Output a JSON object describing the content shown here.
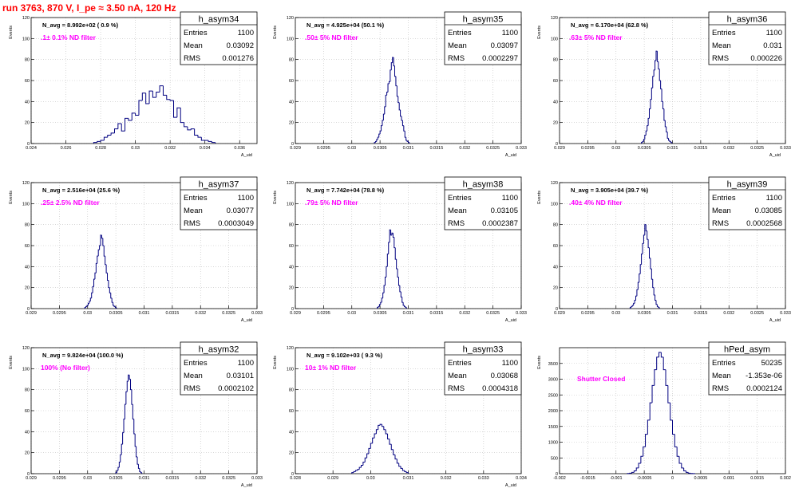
{
  "run_title": "run 3763,   870 V, I_pe ≈ 3.50 nA, 120 Hz",
  "colors": {
    "hist_line": "#000080",
    "grid": "#bfbfbf",
    "annotation": "#ff00ff",
    "title": "#ff0000"
  },
  "chart_data": [
    {
      "type": "histogram",
      "name": "h_asym34",
      "navg": "N_avg = 8.992e+02 ( 0.9 %)",
      "filter": ".1± 0.1% ND filter",
      "stats": {
        "Entries": "1100",
        "Mean": "0.03092",
        "RMS": "0.001276"
      },
      "xlabel": "A_uid",
      "ylabel": "Events",
      "xlim": [
        0.024,
        0.037
      ],
      "ylim": [
        0,
        120
      ],
      "xticks": [
        "0.024",
        "0.026",
        "0.028",
        "0.03",
        "0.032",
        "0.034",
        "0.036"
      ],
      "yticks": [
        "0",
        "20",
        "40",
        "60",
        "80",
        "100",
        "120"
      ],
      "x_start": 0.0276,
      "bin_width": 0.0002,
      "values": [
        1,
        2,
        3,
        6,
        8,
        10,
        14,
        19,
        12,
        24,
        22,
        29,
        27,
        41,
        48,
        38,
        50,
        44,
        49,
        55,
        46,
        42,
        41,
        25,
        34,
        20,
        16,
        13,
        14,
        8,
        6,
        3,
        3,
        2,
        1
      ]
    },
    {
      "type": "histogram",
      "name": "h_asym35",
      "navg": "N_avg = 4.925e+04 (50.1 %)",
      "filter": ".50± 5% ND filter",
      "stats": {
        "Entries": "1100",
        "Mean": "0.03097",
        "RMS": "0.0002297"
      },
      "xlabel": "A_uid",
      "ylabel": "Events",
      "xlim": [
        0.029,
        0.033
      ],
      "ylim": [
        0,
        120
      ],
      "xticks": [
        "0.029",
        "0.0295",
        "0.03",
        "0.0305",
        "0.031",
        "0.0315",
        "0.032",
        "0.0325",
        "0.033"
      ],
      "yticks": [
        "0",
        "20",
        "40",
        "60",
        "80",
        "100",
        "120"
      ],
      "x_start": 0.0304,
      "bin_width": 2e-05,
      "values": [
        1,
        2,
        4,
        6,
        9,
        12,
        17,
        22,
        28,
        35,
        46,
        49,
        57,
        59,
        70,
        77,
        82,
        74,
        64,
        55,
        45,
        39,
        32,
        26,
        22,
        17,
        12,
        6,
        3,
        2,
        1
      ]
    },
    {
      "type": "histogram",
      "name": "h_asym36",
      "navg": "N_avg = 6.170e+04 (62.8 %)",
      "filter": ".63± 5% ND filter",
      "stats": {
        "Entries": "1100",
        "Mean": "0.031",
        "RMS": "0.000226"
      },
      "xlabel": "A_uid",
      "ylabel": "Events",
      "xlim": [
        0.029,
        0.033
      ],
      "ylim": [
        0,
        120
      ],
      "xticks": [
        "0.029",
        "0.0295",
        "0.03",
        "0.0305",
        "0.031",
        "0.0315",
        "0.032",
        "0.0325",
        "0.033"
      ],
      "yticks": [
        "0",
        "20",
        "40",
        "60",
        "80",
        "100",
        "120"
      ],
      "x_start": 0.03045,
      "bin_width": 2e-05,
      "values": [
        1,
        2,
        4,
        8,
        12,
        17,
        24,
        33,
        42,
        53,
        64,
        70,
        79,
        88,
        78,
        71,
        60,
        52,
        40,
        33,
        22,
        16,
        11,
        5,
        3,
        2,
        1
      ]
    },
    {
      "type": "histogram",
      "name": "h_asym37",
      "navg": "N_avg = 2.516e+04 (25.6 %)",
      "filter": ".25± 2.5% ND filter",
      "stats": {
        "Entries": "1100",
        "Mean": "0.03077",
        "RMS": "0.0003049"
      },
      "xlabel": "A_uid",
      "ylabel": "Events",
      "xlim": [
        0.029,
        0.033
      ],
      "ylim": [
        0,
        120
      ],
      "xticks": [
        "0.029",
        "0.0295",
        "0.03",
        "0.0305",
        "0.031",
        "0.0315",
        "0.032",
        "0.0325",
        "0.033"
      ],
      "yticks": [
        "0",
        "20",
        "40",
        "60",
        "80",
        "100",
        "120"
      ],
      "x_start": 0.02995,
      "bin_width": 2e-05,
      "values": [
        1,
        2,
        3,
        5,
        7,
        10,
        15,
        21,
        28,
        34,
        43,
        50,
        56,
        60,
        70,
        67,
        60,
        50,
        42,
        34,
        27,
        20,
        15,
        10,
        6,
        3,
        2,
        1
      ]
    },
    {
      "type": "histogram",
      "name": "h_asym38",
      "navg": "N_avg = 7.742e+04 (78.8 %)",
      "filter": ".79± 5% ND filter",
      "stats": {
        "Entries": "1100",
        "Mean": "0.03105",
        "RMS": "0.0002387"
      },
      "xlabel": "A_uid",
      "ylabel": "Events",
      "xlim": [
        0.029,
        0.033
      ],
      "ylim": [
        0,
        120
      ],
      "xticks": [
        "0.029",
        "0.0295",
        "0.03",
        "0.0305",
        "0.031",
        "0.0315",
        "0.032",
        "0.0325",
        "0.033"
      ],
      "yticks": [
        "0",
        "20",
        "40",
        "60",
        "80",
        "100",
        "120"
      ],
      "x_start": 0.03045,
      "bin_width": 2e-05,
      "values": [
        1,
        2,
        4,
        6,
        10,
        15,
        22,
        30,
        40,
        52,
        63,
        75,
        70,
        72,
        68,
        58,
        47,
        38,
        30,
        22,
        16,
        11,
        6,
        3,
        2,
        1
      ]
    },
    {
      "type": "histogram",
      "name": "h_asym39",
      "navg": "N_avg = 3.905e+04 (39.7 %)",
      "filter": ".40± 4% ND filter",
      "stats": {
        "Entries": "1100",
        "Mean": "0.03085",
        "RMS": "0.0002568"
      },
      "xlabel": "A_uid",
      "ylabel": "Events",
      "xlim": [
        0.029,
        0.033
      ],
      "ylim": [
        0,
        120
      ],
      "xticks": [
        "0.029",
        "0.0295",
        "0.03",
        "0.0305",
        "0.031",
        "0.0315",
        "0.032",
        "0.0325",
        "0.033"
      ],
      "yticks": [
        "0",
        "20",
        "40",
        "60",
        "80",
        "100",
        "120"
      ],
      "x_start": 0.03025,
      "bin_width": 2e-05,
      "values": [
        1,
        2,
        3,
        5,
        8,
        12,
        18,
        25,
        33,
        42,
        52,
        62,
        70,
        80,
        74,
        66,
        58,
        48,
        38,
        28,
        20,
        13,
        8,
        4,
        2,
        1
      ]
    },
    {
      "type": "histogram",
      "name": "h_asym32",
      "navg": "N_avg = 9.824e+04 (100.0 %)",
      "filter": "100% (No filter)",
      "stats": {
        "Entries": "1100",
        "Mean": "0.03101",
        "RMS": "0.0002102"
      },
      "xlabel": "A_uid",
      "ylabel": "Events",
      "xlim": [
        0.029,
        0.033
      ],
      "ylim": [
        0,
        120
      ],
      "xticks": [
        "0.029",
        "0.0295",
        "0.03",
        "0.0305",
        "0.031",
        "0.0315",
        "0.032",
        "0.0325",
        "0.033"
      ],
      "yticks": [
        "0",
        "20",
        "40",
        "60",
        "80",
        "100",
        "120"
      ],
      "x_start": 0.0305,
      "bin_width": 2e-05,
      "values": [
        1,
        3,
        6,
        11,
        18,
        28,
        39,
        52,
        66,
        78,
        88,
        94,
        90,
        80,
        66,
        52,
        38,
        26,
        16,
        9,
        5,
        2,
        1
      ]
    },
    {
      "type": "histogram",
      "name": "h_asym33",
      "navg": "N_avg = 9.102e+03 ( 9.3 %)",
      "filter": "10± 1% ND filter",
      "stats": {
        "Entries": "1100",
        "Mean": "0.03068",
        "RMS": "0.0004318"
      },
      "xlabel": "A_uid",
      "ylabel": "Events",
      "xlim": [
        0.028,
        0.034
      ],
      "ylim": [
        0,
        120
      ],
      "xticks": [
        "0.028",
        "0.029",
        "0.03",
        "0.031",
        "0.032",
        "0.033",
        "0.034"
      ],
      "yticks": [
        "0",
        "20",
        "40",
        "60",
        "80",
        "100",
        "120"
      ],
      "x_start": 0.0295,
      "bin_width": 5e-05,
      "values": [
        1,
        2,
        3,
        4,
        6,
        8,
        11,
        15,
        19,
        24,
        29,
        34,
        38,
        42,
        46,
        47,
        45,
        42,
        38,
        33,
        28,
        23,
        18,
        14,
        10,
        7,
        5,
        3,
        2,
        1
      ]
    },
    {
      "type": "histogram",
      "name": "hPed_asym",
      "navg": "",
      "filter": "Shutter Closed",
      "stats": {
        "Entries": "50235",
        "Mean": "-1.353e-06",
        "RMS": "0.0002124"
      },
      "xlabel": "",
      "ylabel": "Events",
      "xlim": [
        -0.002,
        0.002
      ],
      "ylim": [
        0,
        4000
      ],
      "xticks": [
        "-0.002",
        "-0.0015",
        "-0.001",
        "-0.0005",
        "0",
        "0.0005",
        "0.001",
        "0.0015",
        "0.002"
      ],
      "yticks": [
        "0",
        "500",
        "1000",
        "1500",
        "2000",
        "2500",
        "3000",
        "3500"
      ],
      "x_start": -0.0008,
      "bin_width": 4e-05,
      "values": [
        5,
        15,
        40,
        90,
        180,
        330,
        550,
        850,
        1250,
        1700,
        2250,
        2800,
        3300,
        3700,
        3850,
        3700,
        3300,
        2800,
        2250,
        1700,
        1250,
        850,
        550,
        330,
        180,
        90,
        40,
        15,
        5,
        2
      ]
    }
  ]
}
